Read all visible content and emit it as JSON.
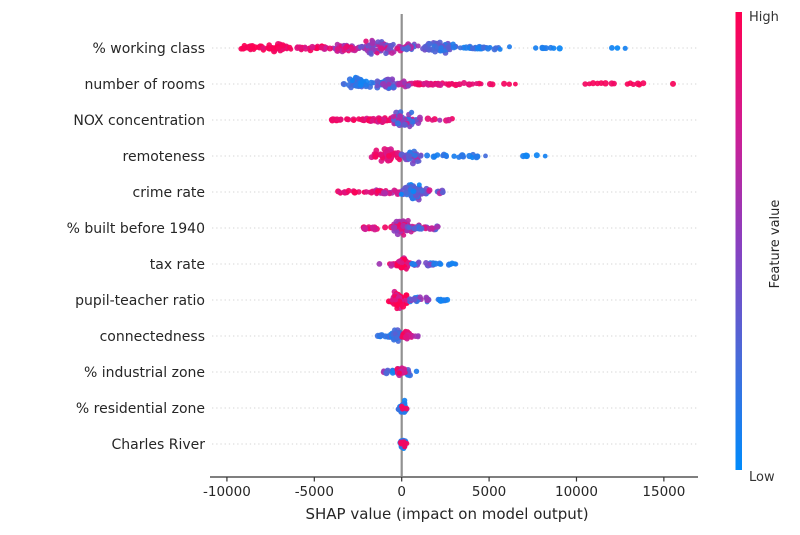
{
  "chart_data": {
    "type": "scatter",
    "variant": "shap-beeswarm-summary",
    "title": "",
    "xlabel": "SHAP value (impact on model output)",
    "ylabel": "",
    "x_ticks": [
      -10000,
      -5000,
      0,
      5000,
      10000,
      15000
    ],
    "x_range": [
      -10900,
      16900
    ],
    "zero_reference_line": 0,
    "grid": "dotted horizontal line per feature row",
    "legend_position": "colorbar-right",
    "point_value_encoding": "v = normalized feature value, 0 = Low (blue), 1 = High (red); x0/x1 = SHAP value extent of cluster; n = approx point count; vj = color jitter; sy = max vertical spread px; dist = blob (violin-shaped) or arm (thin trail)",
    "features": [
      {
        "label": "% working class",
        "clusters": [
          {
            "x0": -9500,
            "x1": -7800,
            "n": 25,
            "v": 0.97,
            "vj": 0.04,
            "sy": 4,
            "dist": "blob"
          },
          {
            "x0": -8100,
            "x1": -5900,
            "n": 35,
            "v": 0.93,
            "vj": 0.08,
            "sy": 5.5,
            "dist": "blob"
          },
          {
            "x0": -6000,
            "x1": -4300,
            "n": 30,
            "v": 0.85,
            "vj": 0.15,
            "sy": 4,
            "dist": "arm"
          },
          {
            "x0": -4400,
            "x1": -2300,
            "n": 40,
            "v": 0.72,
            "vj": 0.22,
            "sy": 5.5,
            "dist": "blob"
          },
          {
            "x0": -2400,
            "x1": 100,
            "n": 75,
            "v": 0.58,
            "vj": 0.28,
            "sy": 10.5,
            "dist": "blob"
          },
          {
            "x0": 0,
            "x1": 1100,
            "n": 25,
            "v": 0.45,
            "vj": 0.28,
            "sy": 6,
            "dist": "blob"
          },
          {
            "x0": 1100,
            "x1": 3300,
            "n": 55,
            "v": 0.28,
            "vj": 0.18,
            "sy": 8,
            "dist": "blob"
          },
          {
            "x0": 3300,
            "x1": 6600,
            "n": 28,
            "v": 0.15,
            "vj": 0.1,
            "sy": 3.5,
            "dist": "arm"
          },
          {
            "x0": 6800,
            "x1": 9100,
            "n": 8,
            "v": 0.08,
            "vj": 0.05,
            "sy": 2,
            "dist": "arm"
          },
          {
            "x0": 11400,
            "x1": 12900,
            "n": 3,
            "v": 0.05,
            "vj": 0.03,
            "sy": 1,
            "dist": "arm"
          }
        ]
      },
      {
        "label": "number of rooms",
        "clusters": [
          {
            "x0": -3650,
            "x1": -3300,
            "n": 2,
            "v": 0.2,
            "vj": 0.05,
            "sy": 1,
            "dist": "arm"
          },
          {
            "x0": -3300,
            "x1": -1500,
            "n": 40,
            "v": 0.15,
            "vj": 0.12,
            "sy": 9,
            "dist": "blob"
          },
          {
            "x0": -1500,
            "x1": -200,
            "n": 45,
            "v": 0.35,
            "vj": 0.25,
            "sy": 9,
            "dist": "blob"
          },
          {
            "x0": -300,
            "x1": 600,
            "n": 22,
            "v": 0.65,
            "vj": 0.22,
            "sy": 5,
            "dist": "blob"
          },
          {
            "x0": 600,
            "x1": 2600,
            "n": 30,
            "v": 0.85,
            "vj": 0.12,
            "sy": 3,
            "dist": "arm"
          },
          {
            "x0": 2600,
            "x1": 4600,
            "n": 16,
            "v": 0.9,
            "vj": 0.08,
            "sy": 2.5,
            "dist": "arm"
          },
          {
            "x0": 4800,
            "x1": 6600,
            "n": 5,
            "v": 0.92,
            "vj": 0.05,
            "sy": 1.5,
            "dist": "arm"
          },
          {
            "x0": 10400,
            "x1": 14000,
            "n": 14,
            "v": 0.95,
            "vj": 0.04,
            "sy": 2,
            "dist": "arm"
          },
          {
            "x0": 15350,
            "x1": 15550,
            "n": 1,
            "v": 0.97,
            "vj": 0.02,
            "sy": 0.5,
            "dist": "arm"
          }
        ]
      },
      {
        "label": "NOX concentration",
        "clusters": [
          {
            "x0": -4100,
            "x1": -2000,
            "n": 25,
            "v": 0.9,
            "vj": 0.08,
            "sy": 3,
            "dist": "arm"
          },
          {
            "x0": -2000,
            "x1": -500,
            "n": 35,
            "v": 0.85,
            "vj": 0.15,
            "sy": 4.5,
            "dist": "arm"
          },
          {
            "x0": -700,
            "x1": 1200,
            "n": 55,
            "v": 0.45,
            "vj": 0.32,
            "sy": 11,
            "dist": "blob"
          },
          {
            "x0": 1300,
            "x1": 2950,
            "n": 7,
            "v": 0.7,
            "vj": 0.28,
            "sy": 2.5,
            "dist": "arm"
          }
        ]
      },
      {
        "label": "remoteness",
        "clusters": [
          {
            "x0": -1800,
            "x1": 100,
            "n": 50,
            "v": 0.88,
            "vj": 0.12,
            "sy": 10,
            "dist": "blob"
          },
          {
            "x0": -100,
            "x1": 1300,
            "n": 40,
            "v": 0.4,
            "vj": 0.28,
            "sy": 9,
            "dist": "blob"
          },
          {
            "x0": 1300,
            "x1": 5000,
            "n": 22,
            "v": 0.13,
            "vj": 0.1,
            "sy": 3.5,
            "dist": "arm"
          },
          {
            "x0": 6900,
            "x1": 8300,
            "n": 5,
            "v": 0.07,
            "vj": 0.04,
            "sy": 1.5,
            "dist": "arm"
          }
        ]
      },
      {
        "label": "crime rate",
        "clusters": [
          {
            "x0": -3700,
            "x1": -1500,
            "n": 22,
            "v": 0.9,
            "vj": 0.08,
            "sy": 2.5,
            "dist": "arm"
          },
          {
            "x0": -1500,
            "x1": -100,
            "n": 30,
            "v": 0.78,
            "vj": 0.22,
            "sy": 5,
            "dist": "arm"
          },
          {
            "x0": -200,
            "x1": 1500,
            "n": 60,
            "v": 0.25,
            "vj": 0.22,
            "sy": 11,
            "dist": "blob"
          },
          {
            "x0": 1500,
            "x1": 2400,
            "n": 10,
            "v": 0.5,
            "vj": 0.28,
            "sy": 4,
            "dist": "arm"
          }
        ]
      },
      {
        "label": "% built before 1940",
        "clusters": [
          {
            "x0": -2300,
            "x1": -900,
            "n": 16,
            "v": 0.85,
            "vj": 0.12,
            "sy": 2.5,
            "dist": "arm"
          },
          {
            "x0": -1000,
            "x1": 1100,
            "n": 65,
            "v": 0.75,
            "vj": 0.26,
            "sy": 10,
            "dist": "blob"
          },
          {
            "x0": 200,
            "x1": 1500,
            "n": 8,
            "v": 0.3,
            "vj": 0.15,
            "sy": 5,
            "dist": "arm"
          },
          {
            "x0": 1100,
            "x1": 2450,
            "n": 16,
            "v": 0.6,
            "vj": 0.38,
            "sy": 4,
            "dist": "arm"
          }
        ]
      },
      {
        "label": "tax rate",
        "clusters": [
          {
            "x0": -1300,
            "x1": -1100,
            "n": 1,
            "v": 0.55,
            "vj": 0.05,
            "sy": 0.5,
            "dist": "arm"
          },
          {
            "x0": -700,
            "x1": -200,
            "n": 10,
            "v": 0.8,
            "vj": 0.18,
            "sy": 4,
            "dist": "arm"
          },
          {
            "x0": -300,
            "x1": 500,
            "n": 45,
            "v": 0.85,
            "vj": 0.18,
            "sy": 8,
            "dist": "blob"
          },
          {
            "x0": 500,
            "x1": 1800,
            "n": 20,
            "v": 0.3,
            "vj": 0.22,
            "sy": 4,
            "dist": "arm"
          },
          {
            "x0": 1800,
            "x1": 3250,
            "n": 12,
            "v": 0.12,
            "vj": 0.07,
            "sy": 2,
            "dist": "arm"
          }
        ]
      },
      {
        "label": "pupil-teacher ratio",
        "clusters": [
          {
            "x0": -800,
            "x1": 400,
            "n": 55,
            "v": 0.88,
            "vj": 0.16,
            "sy": 12,
            "dist": "blob"
          },
          {
            "x0": 400,
            "x1": 1700,
            "n": 20,
            "v": 0.35,
            "vj": 0.28,
            "sy": 5,
            "dist": "blob"
          },
          {
            "x0": 1700,
            "x1": 2700,
            "n": 8,
            "v": 0.12,
            "vj": 0.07,
            "sy": 2,
            "dist": "arm"
          }
        ]
      },
      {
        "label": "connectedness",
        "clusters": [
          {
            "x0": -1400,
            "x1": -600,
            "n": 10,
            "v": 0.15,
            "vj": 0.08,
            "sy": 2.5,
            "dist": "arm"
          },
          {
            "x0": -700,
            "x1": 50,
            "n": 35,
            "v": 0.2,
            "vj": 0.15,
            "sy": 8,
            "dist": "blob"
          },
          {
            "x0": -100,
            "x1": 700,
            "n": 28,
            "v": 0.87,
            "vj": 0.14,
            "sy": 7,
            "dist": "blob"
          },
          {
            "x0": 700,
            "x1": 1000,
            "n": 3,
            "v": 0.5,
            "vj": 0.28,
            "sy": 2,
            "dist": "arm"
          }
        ]
      },
      {
        "label": "% industrial zone",
        "clusters": [
          {
            "x0": -1250,
            "x1": -950,
            "n": 2,
            "v": 0.55,
            "vj": 0.2,
            "sy": 2,
            "dist": "arm"
          },
          {
            "x0": -1100,
            "x1": 1100,
            "n": 32,
            "v": 0.2,
            "vj": 0.14,
            "sy": 4.5,
            "dist": "blob"
          },
          {
            "x0": -350,
            "x1": 250,
            "n": 22,
            "v": 0.8,
            "vj": 0.18,
            "sy": 7,
            "dist": "blob"
          }
        ]
      },
      {
        "label": "% residential zone",
        "clusters": [
          {
            "x0": -250,
            "x1": 350,
            "n": 40,
            "v": 0.15,
            "vj": 0.1,
            "sy": 9,
            "dist": "blob"
          },
          {
            "x0": -450,
            "x1": 450,
            "n": 4,
            "v": 0.9,
            "vj": 0.06,
            "sy": 2.5,
            "dist": "blob"
          }
        ]
      },
      {
        "label": "Charles River",
        "clusters": [
          {
            "x0": -150,
            "x1": 250,
            "n": 32,
            "v": 0.1,
            "vj": 0.08,
            "sy": 9,
            "dist": "blob"
          },
          {
            "x0": -500,
            "x1": 600,
            "n": 5,
            "v": 0.93,
            "vj": 0.04,
            "sy": 5,
            "dist": "blob"
          }
        ]
      }
    ]
  },
  "colorbar": {
    "high_label": "High",
    "low_label": "Low",
    "title": "Feature value",
    "color_high": "#ff0051",
    "color_low": "#008bfb"
  },
  "style": {
    "background": "#ffffff",
    "text_color": "#262626",
    "axis_color": "#333333",
    "zero_line_color": "#919191",
    "grid_color": "#d4d4d4",
    "cmap_stops": [
      "#008bfb",
      "#4a6ad8",
      "#8b3fbf",
      "#d11c92",
      "#ff0051"
    ]
  }
}
